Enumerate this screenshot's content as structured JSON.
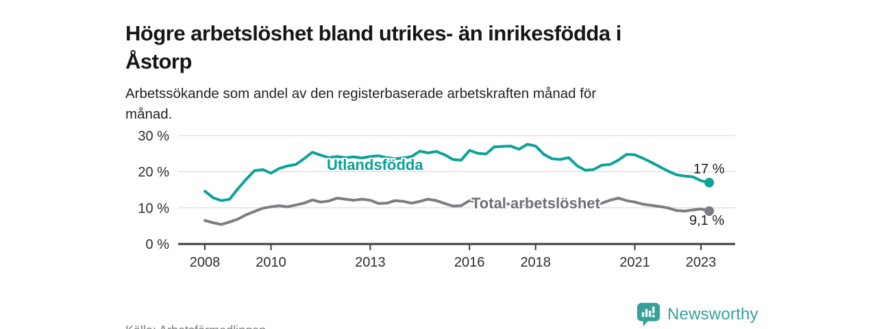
{
  "header": {
    "title_line1": "Högre arbetslöshet bland utrikes- än inrikesfödda i",
    "title_line2": "Åstorp",
    "subtitle_line1": "Arbetssökande som andel av den registerbaserade arbetskraften månad för",
    "subtitle_line2": "månad."
  },
  "colors": {
    "teal": "#0ba29a",
    "gray": "#7c7c82",
    "teal_label": "#0a9f97",
    "gray_label": "#6e6e76",
    "axis": "#3b3b3b",
    "grid": "#d9d9d9",
    "tick_text": "#2c2c2c",
    "logo_teal": "#35a29a",
    "source_text": "#7b7b7b"
  },
  "chart_data": {
    "type": "line",
    "title": "Högre arbetslöshet bland utrikes- än inrikesfödda i Åstorp",
    "subtitle": "Arbetssökande som andel av den registerbaserade arbetskraften månad för månad.",
    "xlabel": "",
    "ylabel": "",
    "ylim": [
      0,
      30
    ],
    "xlim": [
      2007.8,
      2024.3
    ],
    "grid": true,
    "legend": "inline-labels",
    "x": [
      2008.0,
      2008.25,
      2008.5,
      2008.75,
      2009.0,
      2009.25,
      2009.5,
      2009.75,
      2010.0,
      2010.25,
      2010.5,
      2010.75,
      2011.0,
      2011.25,
      2011.5,
      2011.75,
      2012.0,
      2012.25,
      2012.5,
      2012.75,
      2013.0,
      2013.25,
      2013.5,
      2013.75,
      2014.0,
      2014.25,
      2014.5,
      2014.75,
      2015.0,
      2015.25,
      2015.5,
      2015.75,
      2016.0,
      2016.25,
      2016.5,
      2016.75,
      2017.0,
      2017.25,
      2017.5,
      2017.75,
      2018.0,
      2018.25,
      2018.5,
      2018.75,
      2019.0,
      2019.25,
      2019.5,
      2019.75,
      2020.0,
      2020.25,
      2020.5,
      2020.75,
      2021.0,
      2021.25,
      2021.5,
      2021.75,
      2022.0,
      2022.25,
      2022.5,
      2022.75,
      2023.0,
      2023.25
    ],
    "y_ticks": [
      {
        "value": 0,
        "label": "0 %"
      },
      {
        "value": 10,
        "label": "10 %"
      },
      {
        "value": 20,
        "label": "20 %"
      },
      {
        "value": 30,
        "label": "30 %"
      }
    ],
    "x_ticks": [
      {
        "value": 2008,
        "label": "2008"
      },
      {
        "value": 2010,
        "label": "2010"
      },
      {
        "value": 2013,
        "label": "2013"
      },
      {
        "value": 2016,
        "label": "2016"
      },
      {
        "value": 2018,
        "label": "2018"
      },
      {
        "value": 2021,
        "label": "2021"
      },
      {
        "value": 2023,
        "label": "2023"
      }
    ],
    "series": [
      {
        "id": "utlandsfodda",
        "name": "Utlandsfödda",
        "color": "#0ba29a",
        "end_label": "17 %",
        "end_value": 17.0,
        "values": [
          14.6,
          12.8,
          12.0,
          12.4,
          15.3,
          17.9,
          20.3,
          20.6,
          19.6,
          20.9,
          21.6,
          22.0,
          23.6,
          25.4,
          24.6,
          23.9,
          24.2,
          23.9,
          24.1,
          23.8,
          24.2,
          24.4,
          23.9,
          23.6,
          23.8,
          24.2,
          25.7,
          25.2,
          25.6,
          24.7,
          23.4,
          23.2,
          25.9,
          25.1,
          24.9,
          26.9,
          27.0,
          27.1,
          26.2,
          27.6,
          27.1,
          24.8,
          23.6,
          23.4,
          23.9,
          21.7,
          20.4,
          20.6,
          21.8,
          22.0,
          23.2,
          24.8,
          24.7,
          23.7,
          22.6,
          21.4,
          20.2,
          19.2,
          18.8,
          18.6,
          17.5,
          17.0
        ]
      },
      {
        "id": "total",
        "name": "Total arbetslöshet",
        "color": "#7c7c82",
        "end_label": "9,1 %",
        "end_value": 9.1,
        "values": [
          6.5,
          5.9,
          5.4,
          6.1,
          6.9,
          8.1,
          9.0,
          9.9,
          10.3,
          10.6,
          10.3,
          10.8,
          11.3,
          12.2,
          11.6,
          11.9,
          12.7,
          12.4,
          12.1,
          12.4,
          12.1,
          11.2,
          11.3,
          12.0,
          11.8,
          11.3,
          11.8,
          12.4,
          12.0,
          11.2,
          10.5,
          10.6,
          12.0,
          11.6,
          11.3,
          11.0,
          11.2,
          11.0,
          10.8,
          11.0,
          11.2,
          10.9,
          10.7,
          10.8,
          11.0,
          10.7,
          10.5,
          10.8,
          11.3,
          12.1,
          12.7,
          12.0,
          11.6,
          11.0,
          10.7,
          10.4,
          10.0,
          9.3,
          9.1,
          9.4,
          9.7,
          9.1
        ]
      }
    ]
  },
  "footer": {
    "source": "Källa: Arbetsförmedlingen",
    "logo_text": "Newsworthy",
    "logo_icon": "bar-chart-speech-bubble-icon"
  }
}
